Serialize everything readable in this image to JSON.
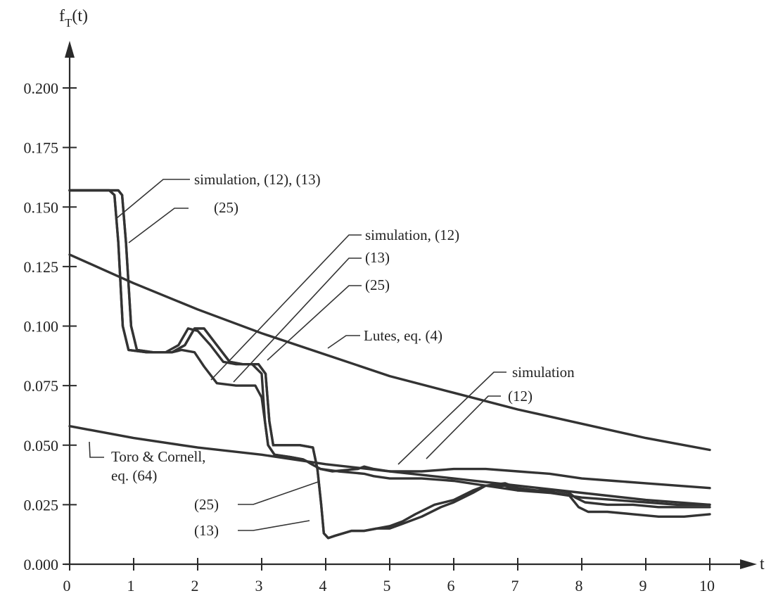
{
  "chart_data": {
    "type": "line",
    "title": "",
    "xlabel": "t",
    "ylabel": "f_T(t)",
    "ylabel_base": "f",
    "ylabel_sub": "T",
    "ylabel_rest": "(t)",
    "xlim": [
      0,
      10.6
    ],
    "ylim": [
      0,
      0.215
    ],
    "x_ticks": [
      0,
      1,
      2,
      3,
      4,
      5,
      6,
      7,
      8,
      9,
      10
    ],
    "x_tick_labels": [
      "0",
      "1",
      "2",
      "3",
      "4",
      "5",
      "6",
      "7",
      "8",
      "9",
      "10"
    ],
    "y_ticks": [
      0,
      0.025,
      0.05,
      0.075,
      0.1,
      0.125,
      0.15,
      0.175,
      0.2
    ],
    "y_tick_labels": [
      "0.000",
      "0.025",
      "0.050",
      "0.075",
      "0.100",
      "0.125",
      "0.150",
      "0.175",
      "0.200"
    ],
    "grid": false,
    "legend": "none",
    "series": [
      {
        "x": [
          0,
          1,
          2,
          3,
          4,
          5,
          6,
          7,
          8,
          9,
          10
        ],
        "y": [
          0.13,
          0.118,
          0.107,
          0.097,
          0.088,
          0.079,
          0.072,
          0.065,
          0.059,
          0.053,
          0.048
        ]
      },
      {
        "x": [
          0,
          1,
          2,
          3,
          4,
          5,
          6,
          7,
          8,
          9,
          10
        ],
        "y": [
          0.058,
          0.053,
          0.049,
          0.046,
          0.042,
          0.039,
          0.036,
          0.033,
          0.03,
          0.027,
          0.025
        ]
      },
      {
        "x": [
          0,
          0.62,
          0.7,
          0.76,
          0.83,
          0.92,
          1.2,
          1.6,
          1.75,
          1.95,
          2.1,
          2.3,
          2.6,
          2.9,
          3.0,
          3.05,
          3.1,
          3.2,
          3.45,
          3.65,
          3.72,
          3.78,
          3.85,
          3.92,
          4.1,
          4.5,
          4.6,
          4.75,
          5.0,
          5.5,
          6.0,
          6.5,
          7.0,
          7.5,
          8.0,
          8.5,
          9.0,
          9.5,
          10.0
        ],
        "y": [
          0.157,
          0.157,
          0.155,
          0.135,
          0.1,
          0.09,
          0.089,
          0.089,
          0.09,
          0.089,
          0.083,
          0.076,
          0.075,
          0.075,
          0.07,
          0.06,
          0.05,
          0.046,
          0.045,
          0.044,
          0.043,
          0.042,
          0.041,
          0.04,
          0.039,
          0.04,
          0.041,
          0.04,
          0.039,
          0.039,
          0.04,
          0.04,
          0.039,
          0.038,
          0.036,
          0.035,
          0.034,
          0.033,
          0.032
        ]
      },
      {
        "x": [
          0,
          0.62,
          0.7,
          0.76,
          0.83,
          0.92,
          1.2,
          1.5,
          1.7,
          1.85,
          2.0,
          2.2,
          2.4,
          2.6,
          2.85,
          3.0,
          3.05,
          3.1,
          3.2,
          3.45,
          3.65,
          3.72,
          3.78,
          3.85,
          3.92,
          4.2,
          4.6,
          4.75,
          5.0,
          5.5,
          6.0,
          6.5,
          7.0,
          7.5,
          8.0,
          8.5,
          9.0,
          9.5,
          10.0
        ],
        "y": [
          0.157,
          0.157,
          0.155,
          0.135,
          0.1,
          0.09,
          0.089,
          0.089,
          0.092,
          0.099,
          0.098,
          0.092,
          0.085,
          0.084,
          0.084,
          0.08,
          0.06,
          0.05,
          0.046,
          0.045,
          0.044,
          0.043,
          0.042,
          0.041,
          0.04,
          0.039,
          0.038,
          0.037,
          0.036,
          0.036,
          0.035,
          0.033,
          0.031,
          0.03,
          0.028,
          0.027,
          0.026,
          0.025,
          0.025
        ]
      },
      {
        "x": [
          0,
          0.76,
          0.82,
          0.88,
          0.96,
          1.05,
          1.3,
          1.6,
          1.8,
          1.95,
          2.1,
          2.3,
          2.5,
          2.7,
          2.95,
          3.06,
          3.12,
          3.18,
          3.3,
          3.6,
          3.8,
          3.87,
          3.93,
          3.97,
          4.04,
          4.15,
          4.4,
          4.6,
          4.8,
          5.0,
          5.2,
          5.5,
          5.8,
          6.0,
          6.3,
          6.5,
          6.8,
          7.0,
          7.3,
          7.6,
          7.8,
          7.95,
          8.1,
          8.4,
          8.8,
          9.2,
          9.6,
          10.0
        ],
        "y": [
          0.157,
          0.157,
          0.155,
          0.135,
          0.1,
          0.09,
          0.089,
          0.089,
          0.092,
          0.099,
          0.099,
          0.092,
          0.085,
          0.084,
          0.084,
          0.08,
          0.06,
          0.05,
          0.05,
          0.05,
          0.049,
          0.04,
          0.025,
          0.013,
          0.011,
          0.012,
          0.014,
          0.014,
          0.015,
          0.015,
          0.017,
          0.02,
          0.024,
          0.026,
          0.03,
          0.033,
          0.034,
          0.032,
          0.031,
          0.03,
          0.029,
          0.024,
          0.022,
          0.022,
          0.021,
          0.02,
          0.02,
          0.021
        ]
      },
      {
        "x": [
          0,
          0.76,
          0.82,
          0.88,
          0.96,
          1.05,
          1.3,
          1.6,
          1.8,
          1.95,
          2.1,
          2.3,
          2.5,
          2.7,
          2.95,
          3.06,
          3.12,
          3.18,
          3.3,
          3.6,
          3.8,
          3.87,
          3.93,
          3.97,
          4.04,
          4.15,
          4.4,
          4.6,
          4.8,
          5.0,
          5.2,
          5.4,
          5.7,
          6.0,
          6.3,
          6.5,
          6.8,
          7.0,
          7.3,
          7.6,
          7.8,
          7.9,
          8.05,
          8.4,
          8.8,
          9.2,
          9.6,
          10.0
        ],
        "y": [
          0.157,
          0.157,
          0.155,
          0.135,
          0.1,
          0.09,
          0.089,
          0.089,
          0.092,
          0.099,
          0.099,
          0.092,
          0.085,
          0.084,
          0.084,
          0.08,
          0.06,
          0.05,
          0.05,
          0.05,
          0.049,
          0.04,
          0.025,
          0.013,
          0.011,
          0.012,
          0.014,
          0.014,
          0.015,
          0.016,
          0.018,
          0.021,
          0.025,
          0.027,
          0.031,
          0.033,
          0.033,
          0.031,
          0.031,
          0.031,
          0.03,
          0.028,
          0.026,
          0.025,
          0.025,
          0.024,
          0.024,
          0.024
        ]
      }
    ]
  },
  "annotations": [
    {
      "text": "simulation, (12), (13)"
    },
    {
      "text": "(25)"
    },
    {
      "text": "simulation, (12)"
    },
    {
      "text": "(13)"
    },
    {
      "text": "(25)"
    },
    {
      "text": "Lutes, eq. (4)"
    },
    {
      "text": "simulation"
    },
    {
      "text": "(12)"
    },
    {
      "text": "Toro & Cornell,"
    },
    {
      "text": "eq. (64)"
    },
    {
      "text": "(25)"
    },
    {
      "text": "(13)"
    }
  ]
}
